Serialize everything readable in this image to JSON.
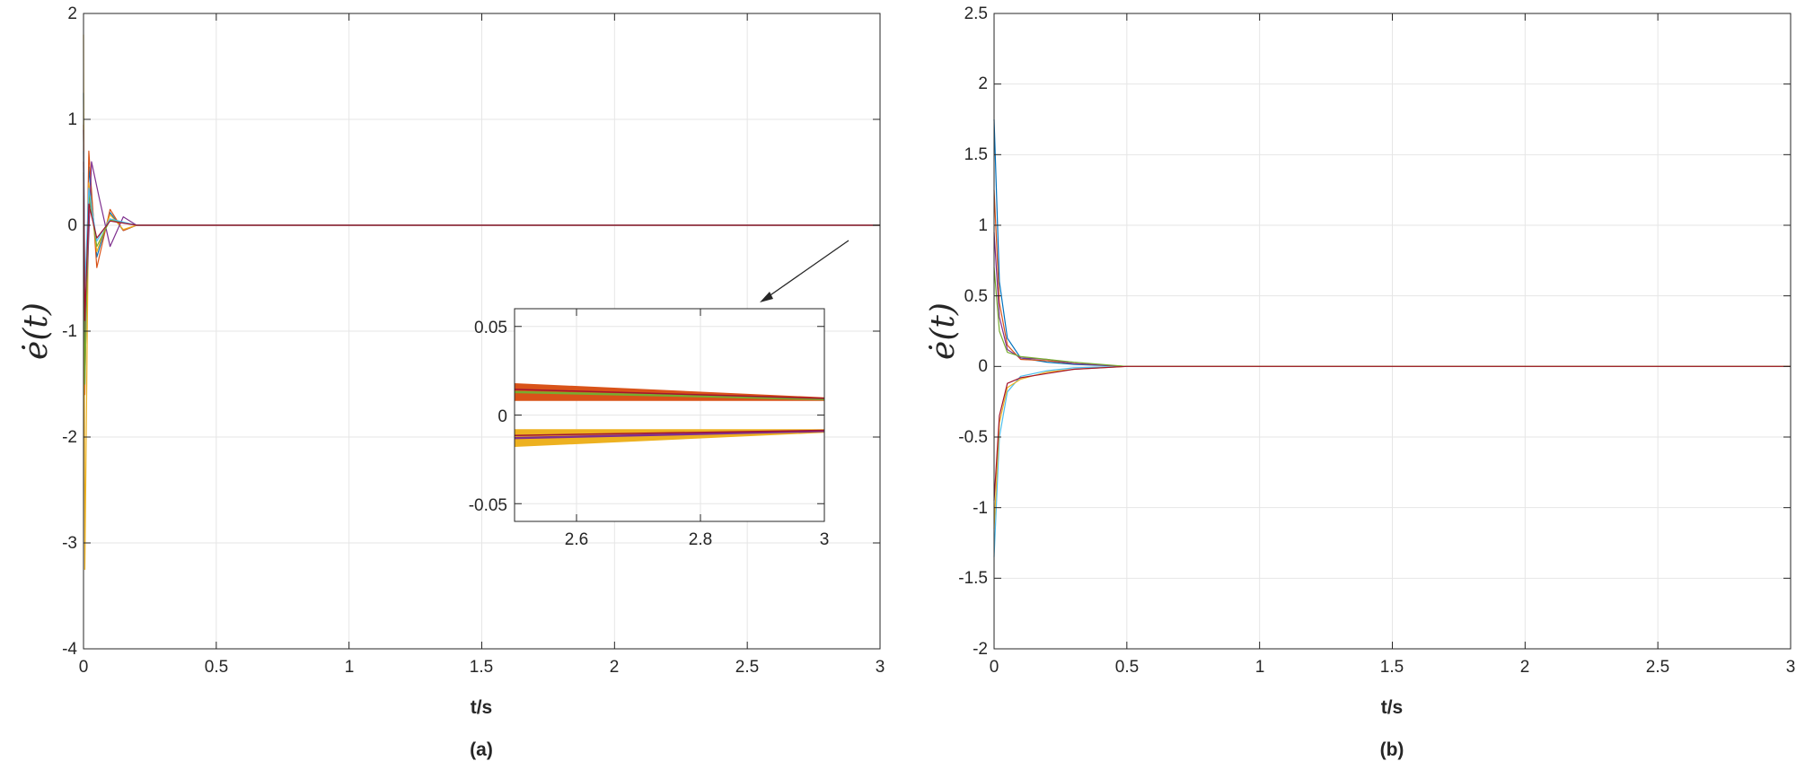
{
  "chart_data": [
    {
      "type": "line",
      "panel_caption": "(a)",
      "xlabel": "t/s",
      "ylabel": "ė(t)",
      "xlim": [
        0,
        3
      ],
      "ylim": [
        -4,
        2
      ],
      "x_ticks": [
        "0",
        "0.5",
        "1",
        "1.5",
        "2",
        "2.5",
        "3"
      ],
      "y_ticks": [
        "-4",
        "-3",
        "-2",
        "-1",
        "0",
        "1",
        "2"
      ],
      "grid": true,
      "description_of_series": "many overlapping trajectories, large oscillations near t=0 decaying to 0 by t≈0.2",
      "series": [
        {
          "color": "#0072BD",
          "points": [
            [
              0,
              1.25
            ],
            [
              0.005,
              -1.2
            ],
            [
              0.02,
              0.55
            ],
            [
              0.05,
              -0.3
            ],
            [
              0.1,
              0.12
            ],
            [
              0.15,
              -0.05
            ],
            [
              0.2,
              0.0
            ],
            [
              3,
              0.0
            ]
          ]
        },
        {
          "color": "#D95319",
          "points": [
            [
              0,
              0.95
            ],
            [
              0.005,
              -1.6
            ],
            [
              0.02,
              0.7
            ],
            [
              0.05,
              -0.4
            ],
            [
              0.1,
              0.15
            ],
            [
              0.15,
              -0.05
            ],
            [
              0.2,
              0.0
            ],
            [
              3,
              0.0
            ]
          ]
        },
        {
          "color": "#EDB120",
          "points": [
            [
              0,
              1.8
            ],
            [
              0.005,
              -3.25
            ],
            [
              0.02,
              0.4
            ],
            [
              0.05,
              -0.25
            ],
            [
              0.1,
              0.1
            ],
            [
              0.15,
              -0.04
            ],
            [
              0.2,
              0.0
            ],
            [
              3,
              0.0
            ]
          ]
        },
        {
          "color": "#7E2F8E",
          "points": [
            [
              0,
              0.9
            ],
            [
              0.005,
              -1.1
            ],
            [
              0.03,
              0.6
            ],
            [
              0.06,
              0.25
            ],
            [
              0.1,
              -0.2
            ],
            [
              0.15,
              0.08
            ],
            [
              0.2,
              0.0
            ],
            [
              3,
              0.0
            ]
          ]
        },
        {
          "color": "#77AC30",
          "points": [
            [
              0,
              0.5
            ],
            [
              0.005,
              -1.5
            ],
            [
              0.02,
              0.3
            ],
            [
              0.05,
              -0.2
            ],
            [
              0.1,
              0.05
            ],
            [
              0.2,
              0.0
            ],
            [
              3,
              0.0
            ]
          ]
        },
        {
          "color": "#4DBEEE",
          "points": [
            [
              0,
              0.7
            ],
            [
              0.005,
              -0.6
            ],
            [
              0.02,
              0.35
            ],
            [
              0.05,
              -0.15
            ],
            [
              0.1,
              0.06
            ],
            [
              0.2,
              0.0
            ],
            [
              3,
              0.0
            ]
          ]
        },
        {
          "color": "#A2142F",
          "points": [
            [
              0,
              0.6
            ],
            [
              0.005,
              -0.9
            ],
            [
              0.02,
              0.2
            ],
            [
              0.05,
              -0.12
            ],
            [
              0.1,
              0.04
            ],
            [
              0.2,
              0.0
            ],
            [
              3,
              0.0
            ]
          ]
        }
      ],
      "inset": {
        "xlim": [
          2.5,
          3
        ],
        "ylim": [
          -0.06,
          0.06
        ],
        "x_ticks": [
          "2.6",
          "2.8",
          "3"
        ],
        "y_ticks": [
          "-0.05",
          "0",
          "0.05"
        ],
        "upper_band": {
          "x": [
            2.5,
            3
          ],
          "center": [
            0.013,
            0.009
          ],
          "halfwidth": [
            0.005,
            0.001
          ]
        },
        "lower_band": {
          "x": [
            2.5,
            3
          ],
          "center": [
            -0.013,
            -0.009
          ],
          "halfwidth": [
            0.005,
            0.001
          ]
        }
      }
    },
    {
      "type": "line",
      "panel_caption": "(b)",
      "xlabel": "t/s",
      "ylabel": "ė(t)",
      "xlim": [
        0,
        3
      ],
      "ylim": [
        -2,
        2.5
      ],
      "x_ticks": [
        "0",
        "0.5",
        "1",
        "1.5",
        "2",
        "2.5",
        "3"
      ],
      "y_ticks": [
        "-2",
        "-1.5",
        "-1",
        "-0.5",
        "0",
        "0.5",
        "1",
        "1.5",
        "2",
        "2.5"
      ],
      "grid": true,
      "description_of_series": "many trajectories starting between about -1.35 and 1.75 at t=0, converging smoothly to 0 by t≈0.5",
      "series": [
        {
          "color": "#0072BD",
          "points": [
            [
              0,
              1.75
            ],
            [
              0.02,
              0.6
            ],
            [
              0.05,
              0.2
            ],
            [
              0.1,
              0.06
            ],
            [
              0.2,
              0.03
            ],
            [
              0.3,
              0.015
            ],
            [
              0.5,
              0.0
            ],
            [
              3,
              0.0
            ]
          ]
        },
        {
          "color": "#4DBEEE",
          "points": [
            [
              0,
              -1.35
            ],
            [
              0.02,
              -0.5
            ],
            [
              0.05,
              -0.18
            ],
            [
              0.1,
              -0.07
            ],
            [
              0.2,
              -0.03
            ],
            [
              0.3,
              -0.01
            ],
            [
              0.5,
              0.0
            ],
            [
              3,
              0.0
            ]
          ]
        },
        {
          "color": "#D95319",
          "points": [
            [
              0,
              1.25
            ],
            [
              0.02,
              0.45
            ],
            [
              0.05,
              0.15
            ],
            [
              0.1,
              0.05
            ],
            [
              0.2,
              0.04
            ],
            [
              0.3,
              0.02
            ],
            [
              0.5,
              0.0
            ],
            [
              3,
              0.0
            ]
          ]
        },
        {
          "color": "#7E2F8E",
          "points": [
            [
              0,
              0.95
            ],
            [
              0.02,
              0.35
            ],
            [
              0.05,
              0.12
            ],
            [
              0.1,
              0.06
            ],
            [
              0.2,
              0.05
            ],
            [
              0.3,
              0.02
            ],
            [
              0.5,
              0.0
            ],
            [
              3,
              0.0
            ]
          ]
        },
        {
          "color": "#EDB120",
          "points": [
            [
              0,
              -1.15
            ],
            [
              0.02,
              -0.4
            ],
            [
              0.05,
              -0.15
            ],
            [
              0.1,
              -0.09
            ],
            [
              0.2,
              -0.04
            ],
            [
              0.3,
              -0.02
            ],
            [
              0.5,
              0.0
            ],
            [
              3,
              0.0
            ]
          ]
        },
        {
          "color": "#77AC30",
          "points": [
            [
              0,
              0.7
            ],
            [
              0.02,
              0.25
            ],
            [
              0.05,
              0.1
            ],
            [
              0.1,
              0.07
            ],
            [
              0.2,
              0.05
            ],
            [
              0.3,
              0.03
            ],
            [
              0.5,
              0.0
            ],
            [
              3,
              0.0
            ]
          ]
        },
        {
          "color": "#A2142F",
          "points": [
            [
              0,
              -0.95
            ],
            [
              0.02,
              -0.35
            ],
            [
              0.05,
              -0.12
            ],
            [
              0.1,
              -0.08
            ],
            [
              0.2,
              -0.05
            ],
            [
              0.3,
              -0.02
            ],
            [
              0.5,
              0.0
            ],
            [
              3,
              0.0
            ]
          ]
        }
      ]
    }
  ]
}
